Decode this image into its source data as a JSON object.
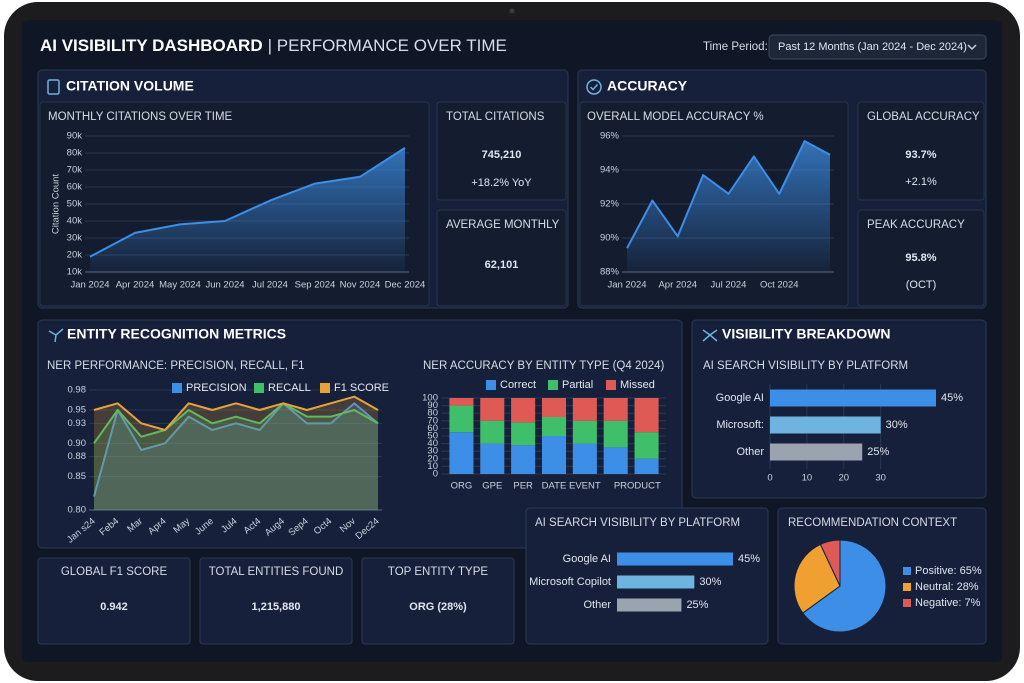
{
  "header": {
    "title": "AI VISIBILITY DASHBOARD",
    "subtitle": "| PERFORMANCE OVER TIME",
    "period_label": "Time Period:",
    "period_value": "Past 12 Months (Jan 2024 - Dec 2024)"
  },
  "panels": {
    "citation": "CITATION VOLUME",
    "accuracy": "ACCURACY",
    "entity": "ENTITY RECOGNITION METRICS",
    "visibility": "VISIBILITY BREAKDOWN"
  },
  "cards": [
    {
      "label": "TOTAL CITATIONS",
      "value": "745,210",
      "delta": "+18.2% YoY"
    },
    {
      "label": "AVERAGE MONTHLY",
      "value": "62,101"
    },
    {
      "label": "GLOBAL ACCURACY",
      "value": "93.7%",
      "delta": "+2.1%"
    },
    {
      "label": "PEAK ACCURACY",
      "value": "95.8%",
      "note": "(OCT)"
    },
    {
      "label": "GLOBAL F1 SCORE",
      "value": "0.942"
    },
    {
      "label": "TOTAL ENTITIES FOUND",
      "value": "1,215,880"
    },
    {
      "label": "TOP ENTITY TYPE",
      "value": "ORG (28%)"
    }
  ],
  "chart_data": [
    {
      "type": "line",
      "title": "MONTHLY CITATIONS OVER TIME",
      "y_label": "Citation Count",
      "categories": [
        "Jan 2024",
        "Apr 2024",
        "May 2024",
        "Jun 2024",
        "Jul 2024",
        "Sep 2024",
        "Nov 2024",
        "Dec 2024"
      ],
      "values": [
        19000,
        33000,
        38000,
        40000,
        52000,
        62000,
        66000,
        83000
      ],
      "color": "#3d8ee6",
      "ylim": [
        10000,
        90000
      ],
      "yticks": [
        {
          "value": 10000,
          "label": "10k"
        },
        {
          "value": 20000,
          "label": "20k"
        },
        {
          "value": 30000,
          "label": "30k"
        },
        {
          "value": 40000,
          "label": "40k"
        },
        {
          "value": 50000,
          "label": "50k"
        },
        {
          "value": 60000,
          "label": "60k"
        },
        {
          "value": 70000,
          "label": "70k"
        },
        {
          "value": 80000,
          "label": "80k"
        },
        {
          "value": 90000,
          "label": "90k"
        }
      ],
      "grid": true
    },
    {
      "type": "line",
      "title": "OVERALL MODEL ACCURACY %",
      "categories": [
        "Jan 2024",
        null,
        "Apr 2024",
        null,
        "Jul 2024",
        null,
        "Oct 2024",
        null,
        null
      ],
      "values": [
        89.4,
        92.2,
        90.1,
        93.7,
        92.6,
        94.8,
        92.6,
        95.7,
        94.9
      ],
      "color": "#3d8ee6",
      "ylim": [
        88,
        96
      ],
      "yticks": [
        {
          "value": 88,
          "label": "88%"
        },
        {
          "value": 90,
          "label": "90%"
        },
        {
          "value": 92,
          "label": "92%"
        },
        {
          "value": 94,
          "label": "94%"
        },
        {
          "value": 96,
          "label": "96%"
        }
      ],
      "grid": true
    },
    {
      "type": "line",
      "title": "NER PERFORMANCE: PRECISION, RECALL, F1",
      "categories": [
        "Jan s24",
        "Feb4",
        "Mar",
        "Apr4",
        "May",
        "June",
        "Jul4",
        "Act4",
        "Aug4",
        "Sep4",
        "Oct4",
        "Nov",
        "Dec24"
      ],
      "series": [
        {
          "name": "PRECISION",
          "color": "#3d8ee6",
          "values": [
            0.82,
            0.95,
            0.89,
            0.9,
            0.94,
            0.92,
            0.93,
            0.92,
            0.96,
            0.93,
            0.93,
            0.96,
            0.93
          ]
        },
        {
          "name": "RECALL",
          "color": "#3fbf6a",
          "values": [
            0.9,
            0.95,
            0.91,
            0.92,
            0.95,
            0.93,
            0.94,
            0.93,
            0.96,
            0.94,
            0.94,
            0.95,
            0.93
          ]
        },
        {
          "name": "F1 SCORE",
          "color": "#e8a23a",
          "values": [
            0.95,
            0.96,
            0.93,
            0.92,
            0.96,
            0.95,
            0.96,
            0.95,
            0.96,
            0.95,
            0.96,
            0.97,
            0.95
          ]
        }
      ],
      "ylim": [
        0.8,
        0.98
      ],
      "yticks": [
        {
          "value": 0.8,
          "label": "0.80"
        },
        0.85,
        0.88,
        {
          "value": 0.9,
          "label": "0.90"
        },
        0.93,
        0.95,
        0.98
      ],
      "grid": true
    },
    {
      "type": "stacked_bar",
      "title": "NER ACCURACY BY ENTITY TYPE (Q4 2024)",
      "categories": [
        "ORG",
        "GPE",
        "PER",
        "DATE",
        "EVENT",
        null,
        "PRODUCT"
      ],
      "series": [
        {
          "name": "Correct",
          "color": "#3d8ee6",
          "values": [
            55,
            40,
            38,
            50,
            40,
            35,
            20
          ]
        },
        {
          "name": "Partial",
          "color": "#3fbf6a",
          "values": [
            35,
            30,
            30,
            25,
            30,
            35,
            35
          ]
        },
        {
          "name": "Missed",
          "color": "#e05a55",
          "values": [
            10,
            30,
            32,
            25,
            30,
            30,
            45
          ]
        }
      ],
      "ylim": [
        0,
        100
      ],
      "yticks": [
        0,
        10,
        20,
        30,
        40,
        50,
        60,
        70,
        80,
        90,
        100
      ],
      "grid": true
    },
    {
      "type": "hbar",
      "title": "AI SEARCH VISIBILITY BY PLATFORM",
      "categories": [
        "Google AI",
        "Microsoft:",
        "Other"
      ],
      "values": [
        45,
        30,
        25
      ],
      "value_labels": [
        "45%",
        "30%",
        "25%"
      ],
      "colors": [
        "#3d8ee6",
        "#6fb3e0",
        "#9aa3b0"
      ],
      "xlim": [
        0,
        45
      ],
      "xticks": [
        0,
        10,
        20,
        30
      ],
      "grid": true
    },
    {
      "type": "hbar",
      "title": "AI SEARCH VISIBILITY BY PLATFORM",
      "categories": [
        "Google AI",
        "Microsoft Copilot",
        "Other"
      ],
      "values": [
        45,
        30,
        25
      ],
      "value_labels": [
        "45%",
        "30%",
        "25%"
      ],
      "colors": [
        "#3d8ee6",
        "#6fb3e0",
        "#9aa3b0"
      ]
    },
    {
      "type": "pie",
      "title": "RECOMMENDATION CONTEXT",
      "categories": [
        "Positive: 65%",
        "Neutral: 28%",
        "Negative: 7%"
      ],
      "values": [
        65,
        28,
        7
      ],
      "colors": [
        "#3d8ee6",
        "#f0a030",
        "#e05a55"
      ]
    }
  ]
}
